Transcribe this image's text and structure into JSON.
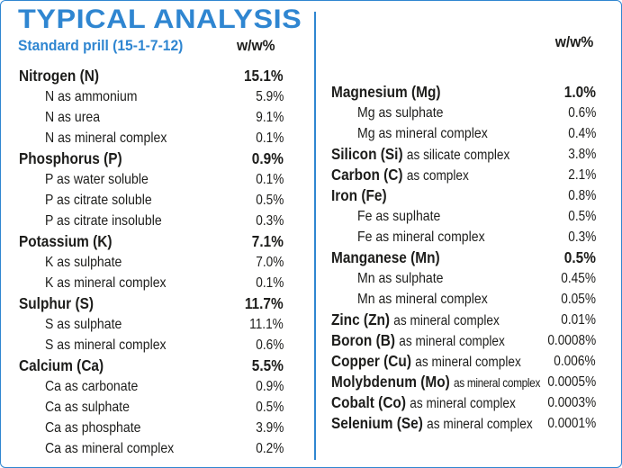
{
  "header": {
    "title": "TYPICAL ANALYSIS",
    "subtitle": "Standard prill (15-1-7-12)",
    "unit_left": "w/w%",
    "unit_right": "w/w%"
  },
  "colors": {
    "accent": "#2f86d1",
    "text": "#1d1d1b"
  },
  "left_rows": [
    {
      "kind": "main",
      "name": "Nitrogen (N)",
      "value": "15.1%"
    },
    {
      "kind": "sub",
      "name": "N as ammonium",
      "value": "5.9%"
    },
    {
      "kind": "sub",
      "name": "N as urea",
      "value": "9.1%"
    },
    {
      "kind": "sub",
      "name": "N as mineral complex",
      "value": "0.1%"
    },
    {
      "kind": "main",
      "name": "Phosphorus (P)",
      "value": "0.9%"
    },
    {
      "kind": "sub",
      "name": "P as water soluble",
      "value": "0.1%"
    },
    {
      "kind": "sub",
      "name": "P as citrate soluble",
      "value": "0.5%"
    },
    {
      "kind": "sub",
      "name": "P as citrate insoluble",
      "value": "0.3%"
    },
    {
      "kind": "main",
      "name": "Potassium (K)",
      "value": "7.1%"
    },
    {
      "kind": "sub",
      "name": "K as sulphate",
      "value": "7.0%"
    },
    {
      "kind": "sub",
      "name": "K as mineral complex",
      "value": "0.1%"
    },
    {
      "kind": "main",
      "name": "Sulphur (S)",
      "value": "11.7%"
    },
    {
      "kind": "sub",
      "name": "S as sulphate",
      "value": "11.1%"
    },
    {
      "kind": "sub",
      "name": "S as mineral complex",
      "value": "0.6%"
    },
    {
      "kind": "main",
      "name": "Calcium (Ca)",
      "value": "5.5%"
    },
    {
      "kind": "sub",
      "name": "Ca as carbonate",
      "value": "0.9%"
    },
    {
      "kind": "sub",
      "name": "Ca as sulphate",
      "value": "0.5%"
    },
    {
      "kind": "sub",
      "name": "Ca as phosphate",
      "value": "3.9%"
    },
    {
      "kind": "sub",
      "name": "Ca as mineral complex",
      "value": "0.2%"
    }
  ],
  "right_rows": [
    {
      "kind": "main",
      "name": "Magnesium (Mg)",
      "value": "1.0%"
    },
    {
      "kind": "sub",
      "name": "Mg as sulphate",
      "value": "0.6%"
    },
    {
      "kind": "sub",
      "name": "Mg as mineral complex",
      "value": "0.4%"
    },
    {
      "kind": "main",
      "name": "Silicon (Si)",
      "note": "as silicate complex",
      "value": "3.8%",
      "thin": true
    },
    {
      "kind": "main",
      "name": "Carbon (C)",
      "note": "as complex",
      "value": "2.1%",
      "thin": true
    },
    {
      "kind": "main",
      "name": "Iron (Fe)",
      "value": "0.8%",
      "thin": true
    },
    {
      "kind": "sub",
      "name": "Fe as suplhate",
      "value": "0.5%"
    },
    {
      "kind": "sub",
      "name": "Fe as mineral complex",
      "value": "0.3%"
    },
    {
      "kind": "main",
      "name": "Manganese (Mn)",
      "value": "0.5%"
    },
    {
      "kind": "sub",
      "name": "Mn as sulphate",
      "value": "0.45%"
    },
    {
      "kind": "sub",
      "name": "Mn as mineral complex",
      "value": "0.05%"
    },
    {
      "kind": "main",
      "name": "Zinc (Zn)",
      "note": "as mineral complex",
      "value": "0.01%",
      "thin": true
    },
    {
      "kind": "main",
      "name": "Boron (B)",
      "note": "as mineral complex",
      "value": "0.0008%",
      "thin": true
    },
    {
      "kind": "main",
      "name": "Copper (Cu)",
      "note": "as mineral complex",
      "value": "0.006%",
      "thin": true
    },
    {
      "kind": "main",
      "name": "Molybdenum (Mo)",
      "note": "as mineral complex",
      "tight": true,
      "value": "0.0005%",
      "thin": true
    },
    {
      "kind": "main",
      "name": "Cobalt (Co)",
      "note": "as mineral complex",
      "value": "0.0003%",
      "thin": true
    },
    {
      "kind": "main",
      "name": "Selenium (Se)",
      "note": "as mineral complex",
      "value": "0.0001%",
      "thin": true
    }
  ]
}
